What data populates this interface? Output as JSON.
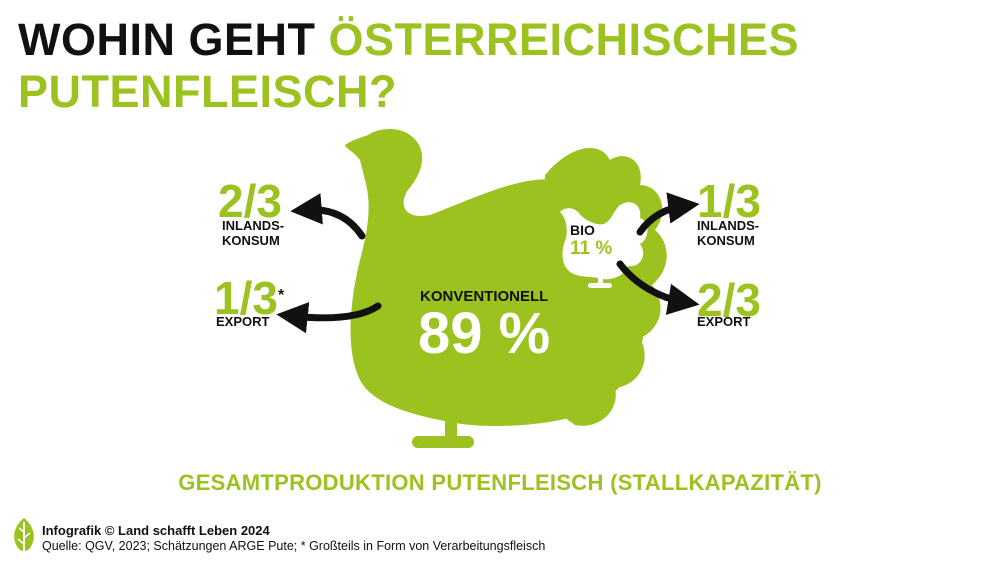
{
  "title": {
    "part1": "WOHIN GEHT ",
    "part2": "ÖSTERREICHISCHES",
    "line2": "PUTENFLEISCH?"
  },
  "conventional": {
    "label": "KONVENTIONELL",
    "value": "89 %"
  },
  "bio": {
    "label": "BIO",
    "value": "11 %"
  },
  "left": {
    "domestic": {
      "fraction": "2/3",
      "label_line1": "INLANDS-",
      "label_line2": "KONSUM"
    },
    "export": {
      "fraction": "1/3",
      "asterisk": "*",
      "label": "EXPORT"
    }
  },
  "right": {
    "domestic": {
      "fraction": "1/3",
      "label_line1": "INLANDS-",
      "label_line2": "KONSUM"
    },
    "export": {
      "fraction": "2/3",
      "label": "EXPORT"
    }
  },
  "caption": "GESAMTPRODUKTION PUTENFLEISCH (STALLKAPAZITÄT)",
  "footer": {
    "credit": "Infografik © Land schafft Leben 2024",
    "source": "Quelle: QGV, 2023; Schätzungen ARGE Pute; * Großteils in Form von Verarbeitungsfleisch"
  },
  "colors": {
    "green": "#9bc21f",
    "dark": "#111111",
    "white": "#ffffff"
  }
}
